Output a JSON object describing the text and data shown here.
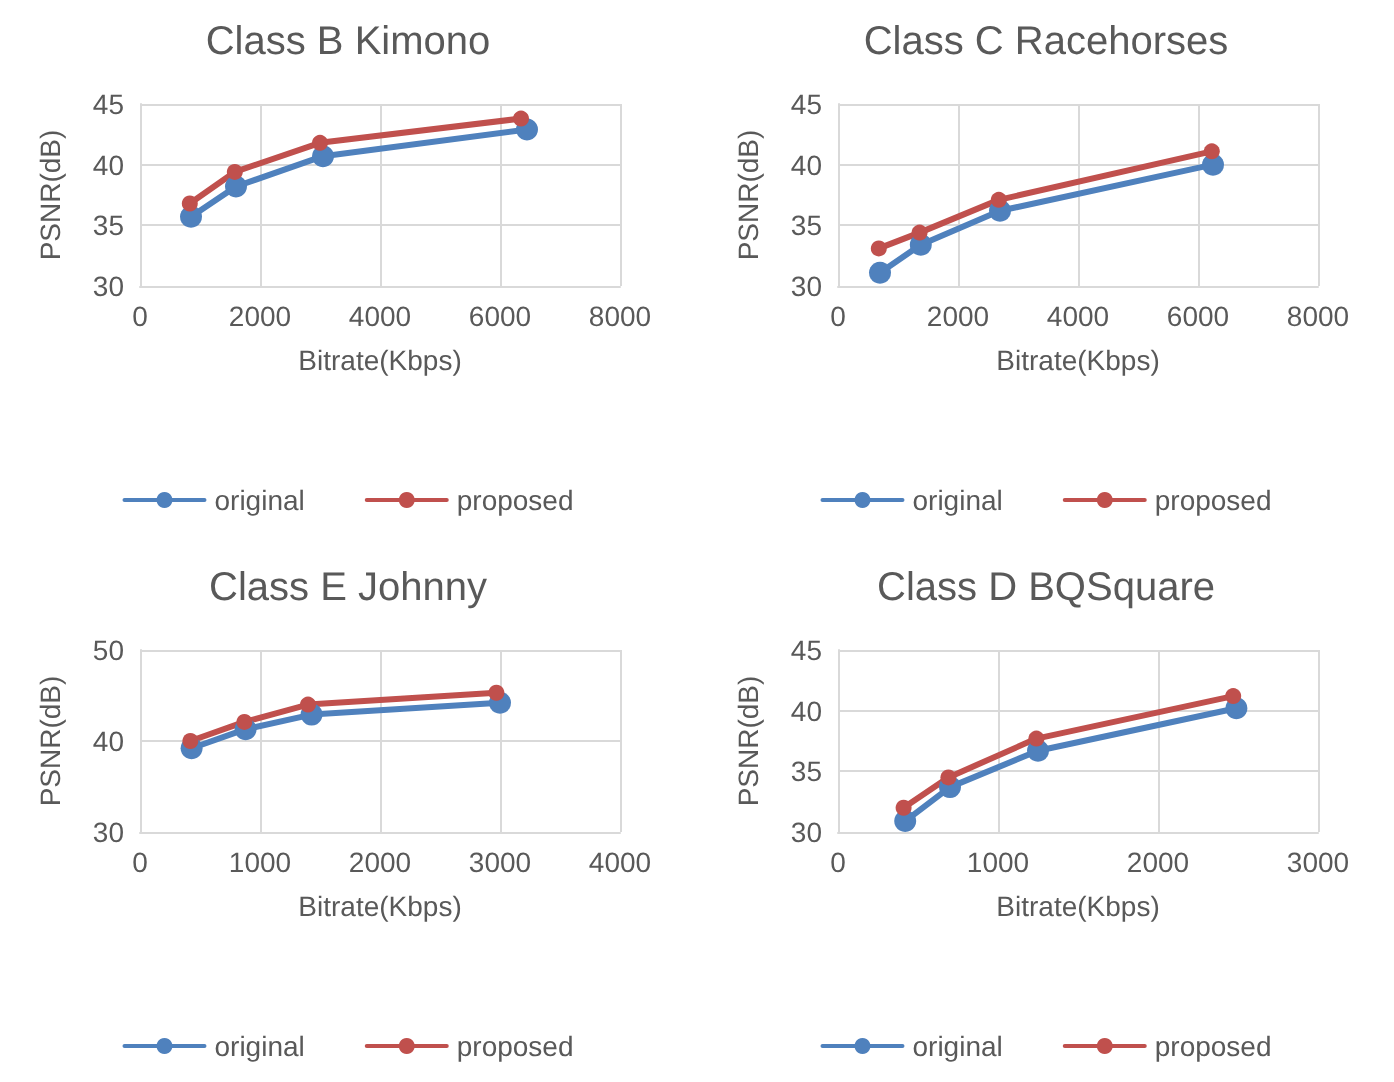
{
  "chart_data": [
    {
      "type": "line",
      "title": "Class B Kimono",
      "xlabel": "Bitrate(Kbps)",
      "ylabel": "PSNR(dB)",
      "xlim": [
        0,
        8000
      ],
      "xticks": [
        0,
        2000,
        4000,
        6000,
        8000
      ],
      "ylim": [
        30,
        45
      ],
      "yticks": [
        30,
        35,
        40,
        45
      ],
      "grid": true,
      "legend": "bottom",
      "marker": "circle",
      "line_style": "solid",
      "series": [
        {
          "name": "original",
          "color": "#4f81bd",
          "x": [
            850,
            1600,
            3050,
            6450
          ],
          "values": [
            35.7,
            38.2,
            40.7,
            42.9
          ]
        },
        {
          "name": "proposed",
          "color": "#c0504d",
          "x": [
            830,
            1580,
            3000,
            6350
          ],
          "values": [
            36.8,
            39.4,
            41.8,
            43.8
          ]
        }
      ]
    },
    {
      "type": "line",
      "title": "Class C Racehorses",
      "xlabel": "Bitrate(Kbps)",
      "ylabel": "PSNR(dB)",
      "xlim": [
        0,
        8000
      ],
      "xticks": [
        0,
        2000,
        4000,
        6000,
        8000
      ],
      "ylim": [
        30,
        45
      ],
      "yticks": [
        30,
        35,
        40,
        45
      ],
      "grid": true,
      "legend": "bottom",
      "marker": "circle",
      "line_style": "solid",
      "series": [
        {
          "name": "original",
          "color": "#4f81bd",
          "x": [
            700,
            1380,
            2700,
            6250
          ],
          "values": [
            31.1,
            33.4,
            36.2,
            40.0
          ]
        },
        {
          "name": "proposed",
          "color": "#c0504d",
          "x": [
            680,
            1360,
            2680,
            6230
          ],
          "values": [
            33.1,
            34.4,
            37.1,
            41.1
          ]
        }
      ]
    },
    {
      "type": "line",
      "title": "Class E Johnny",
      "xlabel": "Bitrate(Kbps)",
      "ylabel": "PSNR(dB)",
      "xlim": [
        0,
        4000
      ],
      "xticks": [
        0,
        1000,
        2000,
        3000,
        4000
      ],
      "ylim": [
        30,
        50
      ],
      "yticks": [
        30,
        40,
        50
      ],
      "grid": true,
      "legend": "bottom",
      "marker": "circle",
      "line_style": "solid",
      "series": [
        {
          "name": "original",
          "color": "#4f81bd",
          "x": [
            430,
            880,
            1430,
            3000
          ],
          "values": [
            39.2,
            41.3,
            42.9,
            44.2
          ]
        },
        {
          "name": "proposed",
          "color": "#c0504d",
          "x": [
            420,
            870,
            1400,
            2970
          ],
          "values": [
            40.0,
            42.1,
            44.0,
            45.3
          ]
        }
      ]
    },
    {
      "type": "line",
      "title": "Class D BQSquare",
      "xlabel": "Bitrate(Kbps)",
      "ylabel": "PSNR(dB)",
      "xlim": [
        0,
        3000
      ],
      "xticks": [
        0,
        1000,
        2000,
        3000
      ],
      "ylim": [
        30,
        45
      ],
      "yticks": [
        30,
        35,
        40,
        45
      ],
      "grid": true,
      "legend": "bottom",
      "marker": "circle",
      "line_style": "solid",
      "series": [
        {
          "name": "original",
          "color": "#4f81bd",
          "x": [
            420,
            700,
            1250,
            2490
          ],
          "values": [
            30.9,
            33.7,
            36.7,
            40.2
          ]
        },
        {
          "name": "proposed",
          "color": "#c0504d",
          "x": [
            410,
            690,
            1240,
            2470
          ],
          "values": [
            32.0,
            34.5,
            37.7,
            41.2
          ]
        }
      ]
    }
  ]
}
